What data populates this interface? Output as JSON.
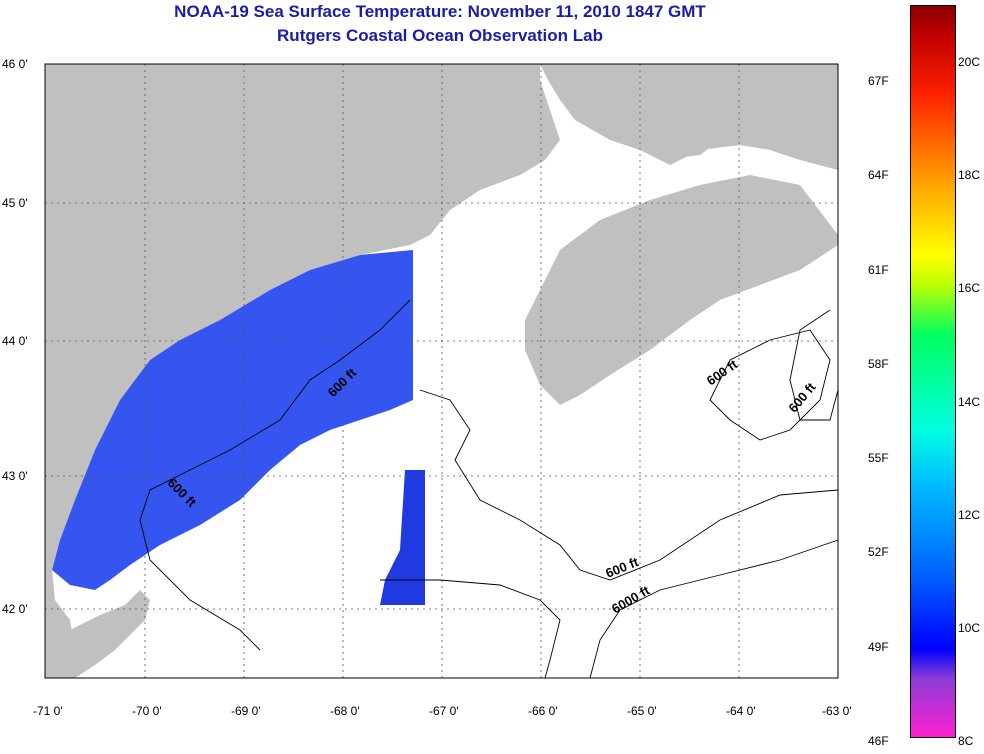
{
  "title": {
    "line1": "NOAA-19 Sea Surface Temperature:  November 11, 2010 1847 GMT",
    "line2": "Rutgers Coastal Ocean Observation Lab"
  },
  "axes": {
    "lat_ticks": [
      "46 0'",
      "45 0'",
      "44 0'",
      "43 0'",
      "42 0'"
    ],
    "lon_ticks": [
      "-71 0'",
      "-70 0'",
      "-69 0'",
      "-68 0'",
      "-67 0'",
      "-66 0'",
      "-65 0'",
      "-64 0'",
      "-63 0'"
    ]
  },
  "contour_labels": [
    "600 ft",
    "600 ft",
    "600 ft",
    "600 ft",
    "600 ft",
    "6000 ft"
  ],
  "colorbar": {
    "fahrenheit": [
      "67F",
      "64F",
      "61F",
      "58F",
      "55F",
      "52F",
      "49F",
      "46F"
    ],
    "celsius": [
      "20C",
      "18C",
      "16C",
      "14C",
      "12C",
      "10C",
      "8C"
    ]
  },
  "colors": {
    "land": "#c0c0c0",
    "water": "#ffffff",
    "sst": "#2a4cf0",
    "title": "#1c1ca8"
  }
}
